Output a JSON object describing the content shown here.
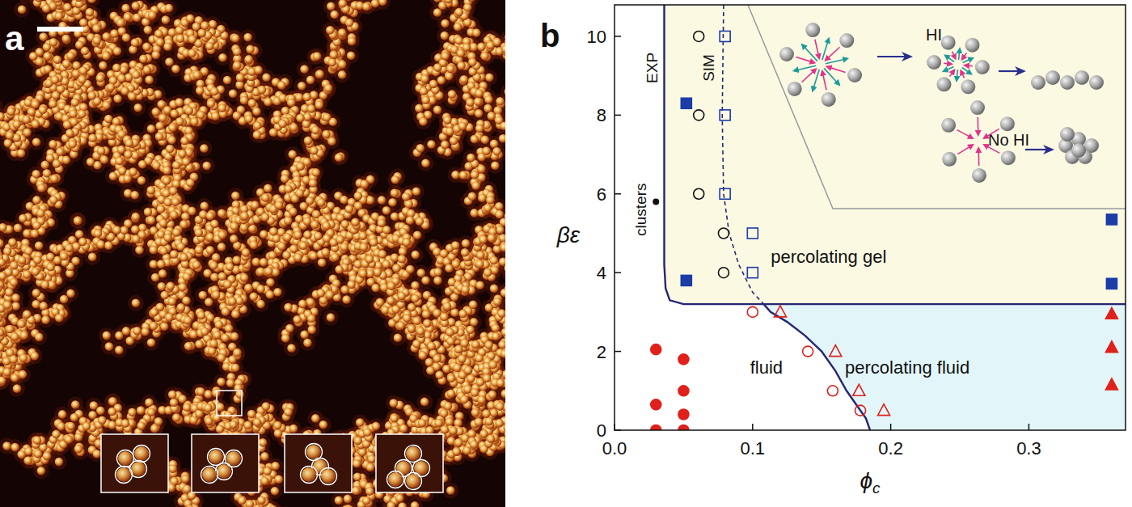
{
  "panel_a": {
    "label": "a"
  },
  "chart_data": {
    "type": "scatter",
    "panel_label": "b",
    "x_label": "ϕc",
    "y_label": "βε",
    "xlim": [
      0,
      0.37
    ],
    "ylim": [
      0,
      10.8
    ],
    "xticks": [
      {
        "value": 0,
        "label": "0.0"
      },
      0.1,
      0.2,
      0.3
    ],
    "yticks": [
      0,
      2,
      4,
      6,
      8,
      10
    ],
    "series": [
      {
        "type": "area",
        "color": "#fbf9e2",
        "x": [
          0.036,
          0.036,
          0.037,
          0.04,
          0.05,
          0.37,
          0.37
        ],
        "values": [
          10.8,
          4.2,
          3.6,
          3.3,
          3.2,
          3.2,
          10.8
        ]
      },
      {
        "type": "area",
        "color": "#e2f6f9",
        "x": [
          0.108,
          0.113,
          0.125,
          0.138,
          0.15,
          0.16,
          0.168,
          0.176,
          0.182,
          0.185,
          0.37,
          0.37
        ],
        "values": [
          3.2,
          3.0,
          2.75,
          2.4,
          2.0,
          1.5,
          1.0,
          0.6,
          0.3,
          0,
          0,
          3.2
        ]
      },
      {
        "type": "line",
        "color": "#262673",
        "line_style": "solid",
        "x": [
          0.036,
          0.036,
          0.037,
          0.04,
          0.05,
          0.37
        ],
        "values": [
          10.8,
          4.2,
          3.6,
          3.3,
          3.2,
          3.2
        ]
      },
      {
        "type": "line",
        "color": "#262673",
        "line_style": "solid",
        "x": [
          0.108,
          0.113,
          0.125,
          0.138,
          0.15,
          0.16,
          0.168,
          0.176,
          0.182,
          0.185
        ],
        "values": [
          3.2,
          3.0,
          2.75,
          2.4,
          2.0,
          1.5,
          1.0,
          0.6,
          0.3,
          0
        ]
      },
      {
        "type": "line",
        "color": "#262673",
        "line_style": "dashed",
        "x": [
          0.079,
          0.078,
          0.079,
          0.083,
          0.09,
          0.1,
          0.108
        ],
        "values": [
          10.8,
          8,
          6,
          5,
          4.2,
          3.5,
          3.2
        ]
      },
      {
        "type": "scatter",
        "marker": "circle",
        "color": "#e0201b",
        "x": [
          0.03,
          0.03,
          0.03,
          0.05,
          0.05,
          0.05,
          0.05
        ],
        "values": [
          2.05,
          0.65,
          0,
          1.8,
          1.0,
          0.4,
          0
        ]
      },
      {
        "type": "scatter",
        "marker": "triangle",
        "color": "#e0201b",
        "x": [
          0.36,
          0.36,
          0.36
        ],
        "values": [
          2.95,
          2.1,
          1.15
        ]
      },
      {
        "type": "scatter",
        "marker": "open-circle",
        "color": "#e0201b",
        "x": [
          0.1,
          0.14,
          0.158,
          0.178
        ],
        "values": [
          3.0,
          2.0,
          1.0,
          0.5
        ]
      },
      {
        "type": "scatter",
        "marker": "open-triangle",
        "color": "#e0201b",
        "x": [
          0.12,
          0.16,
          0.177,
          0.195
        ],
        "values": [
          3.0,
          2.0,
          1.0,
          0.5
        ]
      },
      {
        "type": "scatter",
        "marker": "open-circle",
        "color": "#111111",
        "x": [
          0.061,
          0.061,
          0.061,
          0.079,
          0.079
        ],
        "values": [
          10,
          8,
          6,
          5,
          4
        ]
      },
      {
        "type": "scatter",
        "marker": "open-square",
        "color": "#1c3ca8",
        "x": [
          0.08,
          0.08,
          0.08,
          0.1,
          0.1
        ],
        "values": [
          10,
          8,
          6,
          5,
          4
        ]
      },
      {
        "type": "scatter",
        "marker": "square",
        "color": "#1c3ca8",
        "x": [
          0.052,
          0.052,
          0.36,
          0.36
        ],
        "values": [
          8.3,
          3.8,
          5.35,
          3.72
        ]
      },
      {
        "type": "scatter",
        "marker": "dot",
        "color": "#111111",
        "x": [
          0.03
        ],
        "values": [
          5.8
        ]
      }
    ],
    "annotations": [
      {
        "text": "EXP",
        "x": 0.027,
        "y": 9.2,
        "orientation": "vertical"
      },
      {
        "text": "SIM",
        "x": 0.068,
        "y": 9.2,
        "orientation": "vertical"
      },
      {
        "text": "clusters",
        "x": 0.019,
        "y": 5.6,
        "orientation": "vertical"
      },
      {
        "text": "percolating gel",
        "x": 0.155,
        "y": 4.4
      },
      {
        "text": "fluid",
        "x": 0.11,
        "y": 1.6
      },
      {
        "text": "percolating fluid",
        "x": 0.212,
        "y": 1.6
      }
    ],
    "inset": {
      "labels": [
        "HI",
        "No HI"
      ]
    }
  }
}
